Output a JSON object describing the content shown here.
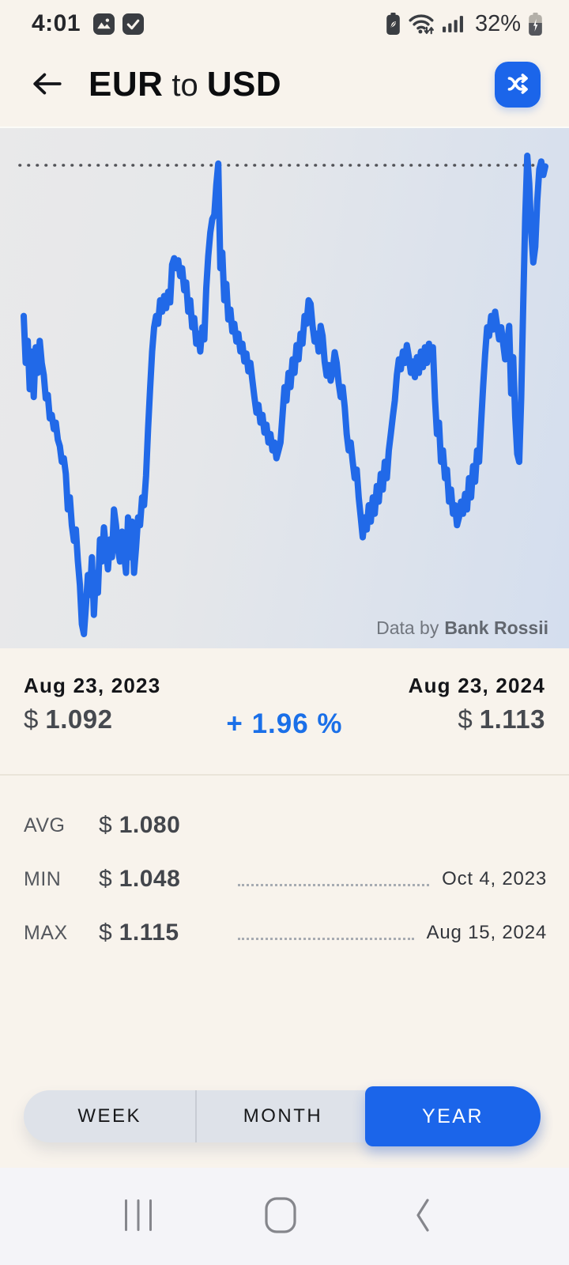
{
  "colors": {
    "app_background": "#f8f3ec",
    "accent_blue": "#1b65ea",
    "line_blue": "#2169e8",
    "percent_blue": "#1a6fe8",
    "chart_bg_left": "#e9e9ea",
    "chart_bg_right": "#d4deee",
    "nav_bar_bg": "#f4f4f8"
  },
  "status_bar": {
    "time": "4:01",
    "battery_percent": "32%",
    "notification_icons": [
      "gallery-icon",
      "checkbox-icon"
    ],
    "system_icons": [
      "power-saver-icon",
      "wifi-arrows-icon",
      "signal-bars-icon",
      "battery-charging-icon"
    ]
  },
  "header": {
    "title_parts": {
      "from": "EUR",
      "connector": "to",
      "to": "USD"
    },
    "buttons": {
      "back": "back-arrow",
      "swap": "shuffle-currencies"
    }
  },
  "chart": {
    "attribution_prefix": "Data by",
    "attribution_source": "Bank Rossii"
  },
  "chart_data": {
    "type": "line",
    "pair": "EUR to USD",
    "period_selected": "YEAR",
    "x_start": "Aug 23, 2023",
    "x_end": "Aug 23, 2024",
    "y_unit": "USD per 1 EUR",
    "ylim": [
      1.045,
      1.118
    ],
    "grid": "single dotted line at max level",
    "legend": "none",
    "max_line_value": 1.115,
    "stats": {
      "start": 1.092,
      "end": 1.113,
      "change_pct": 1.96,
      "avg": 1.08,
      "min": 1.048,
      "min_date": "Oct 4, 2023",
      "max": 1.115,
      "max_date": "Aug 15, 2024"
    },
    "series": [
      {
        "name": "EUR to USD rate",
        "rates": [
          1.0922,
          1.0856,
          1.0887,
          1.0819,
          1.0872,
          1.0808,
          1.0878,
          1.0842,
          1.0887,
          1.0856,
          1.0839,
          1.0806,
          1.0811,
          1.0778,
          1.0783,
          1.0763,
          1.0772,
          1.0748,
          1.0739,
          1.0717,
          1.0722,
          1.07,
          1.065,
          1.0667,
          1.0628,
          1.0606,
          1.0622,
          1.0578,
          1.0544,
          1.0489,
          1.0475,
          1.0514,
          1.0558,
          1.053,
          1.0583,
          1.0502,
          1.0561,
          1.0533,
          1.0608,
          1.0577,
          1.0625,
          1.0594,
          1.0566,
          1.0608,
          1.0583,
          1.065,
          1.0628,
          1.0594,
          1.0577,
          1.0619,
          1.0589,
          1.0561,
          1.0639,
          1.0583,
          1.0633,
          1.0561,
          1.0597,
          1.0639,
          1.0628,
          1.0667,
          1.0656,
          1.0697,
          1.0764,
          1.0819,
          1.0872,
          1.0906,
          1.0922,
          1.0911,
          1.0944,
          1.0928,
          1.095,
          1.0933,
          1.0956,
          1.0941,
          1.0994,
          1.1003,
          1.0989,
          1.1,
          1.0978,
          1.0989,
          1.0958,
          1.0969,
          1.0928,
          1.0944,
          1.0906,
          1.0919,
          1.0883,
          1.0897,
          1.0872,
          1.0906,
          1.0889,
          1.0961,
          1.1006,
          1.1039,
          1.1058,
          1.1064,
          1.1106,
          1.1136,
          1.0989,
          1.1011,
          1.0944,
          1.0967,
          1.0917,
          1.0931,
          1.09,
          1.0911,
          1.0886,
          1.0897,
          1.0872,
          1.0883,
          1.0858,
          1.0869,
          1.0844,
          1.0856,
          1.0831,
          1.0808,
          1.0786,
          1.0797,
          1.0772,
          1.0783,
          1.0758,
          1.0769,
          1.0744,
          1.0756,
          1.0733,
          1.0744,
          1.0722,
          1.0733,
          1.0744,
          1.0783,
          1.0822,
          1.0803,
          1.0842,
          1.0822,
          1.0861,
          1.0842,
          1.0881,
          1.0861,
          1.0897,
          1.0883,
          1.0922,
          1.0911,
          1.0944,
          1.0939,
          1.0908,
          1.0886,
          1.0897,
          1.0872,
          1.0908,
          1.0894,
          1.0858,
          1.0838,
          1.0853,
          1.0831,
          1.0844,
          1.0871,
          1.0856,
          1.0828,
          1.0808,
          1.0822,
          1.0794,
          1.0756,
          1.0733,
          1.0744,
          1.0717,
          1.0694,
          1.0706,
          1.0667,
          1.0639,
          1.0611,
          1.0639,
          1.0622,
          1.0656,
          1.0633,
          1.0667,
          1.0644,
          1.0683,
          1.0661,
          1.07,
          1.0678,
          1.0717,
          1.0694,
          1.0733,
          1.0756,
          1.0781,
          1.0803,
          1.0839,
          1.0861,
          1.0847,
          1.0872,
          1.0856,
          1.0881,
          1.0864,
          1.0842,
          1.0858,
          1.0836,
          1.0864,
          1.0842,
          1.0872,
          1.085,
          1.0878,
          1.0856,
          1.0883,
          1.0861,
          1.0878,
          1.0806,
          1.0756,
          1.0772,
          1.0717,
          1.0733,
          1.0694,
          1.0706,
          1.0661,
          1.0678,
          1.0644,
          1.0656,
          1.0628,
          1.0639,
          1.0661,
          1.0644,
          1.0672,
          1.065,
          1.0694,
          1.0667,
          1.0711,
          1.0689,
          1.0733,
          1.0717,
          1.0772,
          1.0822,
          1.0867,
          1.0906,
          1.0894,
          1.0922,
          1.0903,
          1.0928,
          1.0908,
          1.0889,
          1.0906,
          1.0883,
          1.0861,
          1.0883,
          1.0908,
          1.0813,
          1.0864,
          1.0781,
          1.0728,
          1.0717,
          1.0806,
          1.0939,
          1.106,
          1.1147,
          1.1108,
          1.1039,
          1.0997,
          1.1019,
          1.1083,
          1.1128,
          1.1139,
          1.112,
          1.1132
        ]
      }
    ]
  },
  "summary": {
    "start": {
      "date": "Aug 23, 2023",
      "currency": "$",
      "value": "1.092"
    },
    "change": "+ 1.96 %",
    "end": {
      "date": "Aug 23, 2024",
      "currency": "$",
      "value": "1.113"
    }
  },
  "stats": {
    "rows": [
      {
        "label": "AVG",
        "currency": "$",
        "value": "1.080",
        "date": ""
      },
      {
        "label": "MIN",
        "currency": "$",
        "value": "1.048",
        "date": "Oct 4, 2023"
      },
      {
        "label": "MAX",
        "currency": "$",
        "value": "1.115",
        "date": "Aug 15, 2024"
      }
    ]
  },
  "range_tabs": {
    "options": [
      {
        "label": "WEEK",
        "active": false
      },
      {
        "label": "MONTH",
        "active": false
      },
      {
        "label": "YEAR",
        "active": true
      }
    ]
  },
  "nav_bar": {
    "icons": [
      "recents-icon",
      "home-icon",
      "back-icon"
    ]
  }
}
